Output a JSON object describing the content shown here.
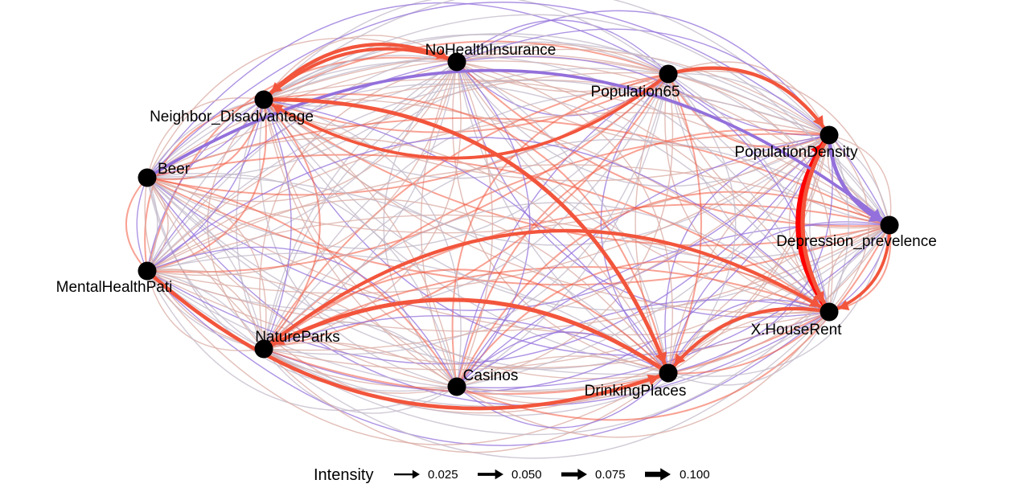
{
  "nodes": [
    {
      "id": "NoHealthInsurance",
      "label": "NoHealthInsurance"
    },
    {
      "id": "Population65",
      "label": "Population65"
    },
    {
      "id": "Neighbor_Disadvantage",
      "label": "Neighbor_Disadvantage"
    },
    {
      "id": "PopulationDensity",
      "label": "PopulationDensity"
    },
    {
      "id": "Beer",
      "label": "Beer"
    },
    {
      "id": "Depression_prevelence",
      "label": "Depression_prevelence"
    },
    {
      "id": "MentalHealthPati",
      "label": "MentalHealthPati"
    },
    {
      "id": "X.HouseRent",
      "label": "X.HouseRent"
    },
    {
      "id": "NatureParks",
      "label": "NatureParks"
    },
    {
      "id": "Casinos",
      "label": "Casinos"
    },
    {
      "id": "DrinkingPlaces",
      "label": "DrinkingPlaces"
    }
  ],
  "edges": [
    {
      "from": "X.HouseRent",
      "to": "PopulationDensity",
      "intensity": 0.1,
      "sign": "positive"
    },
    {
      "from": "PopulationDensity",
      "to": "Depression_prevelence",
      "intensity": 0.065,
      "sign": "negative"
    },
    {
      "from": "Beer",
      "to": "Depression_prevelence",
      "intensity": 0.05,
      "sign": "negative"
    },
    {
      "from": "DrinkingPlaces",
      "to": "NatureParks",
      "intensity": 0.025,
      "sign": "negative"
    },
    {
      "from": "Neighbor_Disadvantage",
      "to": "DrinkingPlaces",
      "intensity": 0.07,
      "sign": "positive"
    },
    {
      "from": "MentalHealthPati",
      "to": "DrinkingPlaces",
      "intensity": 0.065,
      "sign": "positive"
    },
    {
      "from": "NatureParks",
      "to": "X.HouseRent",
      "intensity": 0.06,
      "sign": "positive"
    },
    {
      "from": "DrinkingPlaces",
      "to": "NatureParks",
      "intensity": 0.075,
      "sign": "positive"
    },
    {
      "from": "Population65",
      "to": "PopulationDensity",
      "intensity": 0.06,
      "sign": "positive"
    },
    {
      "from": "PopulationDensity",
      "to": "X.HouseRent",
      "intensity": 0.075,
      "sign": "positive"
    },
    {
      "from": "Neighbor_Disadvantage",
      "to": "NoHealthInsurance",
      "intensity": 0.06,
      "sign": "positive"
    },
    {
      "from": "NoHealthInsurance",
      "to": "Neighbor_Disadvantage",
      "intensity": 0.055,
      "sign": "positive"
    },
    {
      "from": "Population65",
      "to": "Neighbor_Disadvantage",
      "intensity": 0.05,
      "sign": "positive"
    },
    {
      "from": "X.HouseRent",
      "to": "DrinkingPlaces",
      "intensity": 0.06,
      "sign": "positive"
    },
    {
      "from": "Depression_prevelence",
      "to": "X.HouseRent",
      "intensity": 0.05,
      "sign": "positive"
    }
  ],
  "legend": {
    "title": "Intensity",
    "items": [
      {
        "label": "0.025",
        "value": 0.025
      },
      {
        "label": "0.050",
        "value": 0.05
      },
      {
        "label": "0.075",
        "value": 0.075
      },
      {
        "label": "0.100",
        "value": 0.1
      }
    ]
  },
  "colors": {
    "positive_strong": "#ff0000",
    "positive": "#f2553c",
    "positive_weak": "#d9a9a2",
    "neutral": "#c2b8c8",
    "negative": "#9370db",
    "node": "#000000"
  }
}
